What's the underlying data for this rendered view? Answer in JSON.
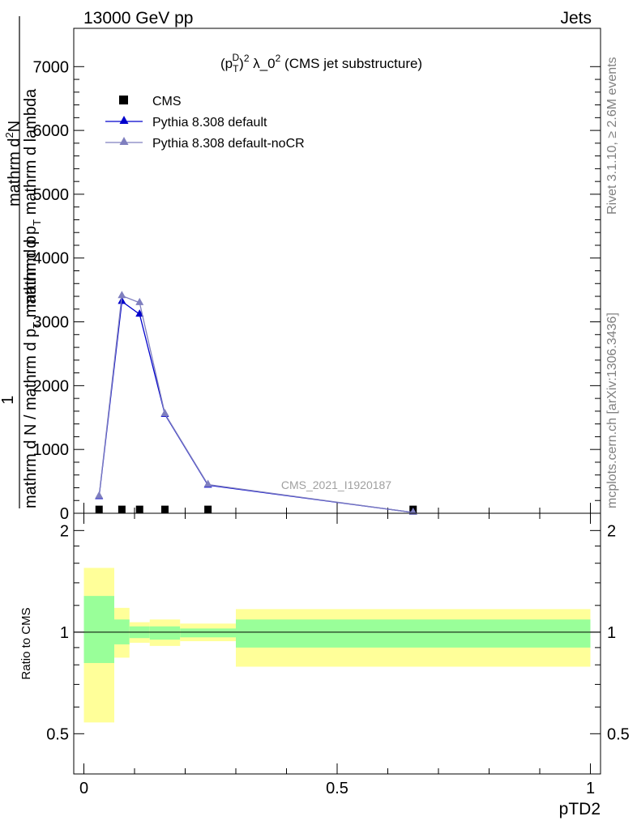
{
  "header": {
    "left": "13000 GeV pp",
    "right": "Jets"
  },
  "side_labels": {
    "rivet": "Rivet 3.1.10, ≥ 2.6M events",
    "mcplots": "mcplots.cern.ch [arXiv:1306.3436]"
  },
  "colors": {
    "cms": "#000000",
    "pythia_default": "#0000cc",
    "pythia_nocr": "#7f7fbf",
    "band_inner": "#99ff99",
    "band_outer": "#ffff99",
    "analysis_tag": "#a0a0a0"
  },
  "chart_data": [
    {
      "type": "line",
      "title_parts": {
        "open": "(p",
        "sub": "T",
        "sup_d": "D",
        "close": ")",
        "sup": "2",
        "mid": " λ_0",
        "sup2": "2",
        "rest": " (CMS jet substructure)"
      },
      "analysis_tag": "CMS_2021_I1920187",
      "xlabel": "pTD2",
      "ylabel_parts": {
        "one": "1",
        "den_a": "mathrm d N / mathrm d p",
        "den_sub": "T",
        "den_b": " mathrm d p",
        "num_a": "mathrm d",
        "num_sup": "2",
        "num_b": "N",
        "num_c": "mathrm d p",
        "num_sub": "T",
        "num_d": " mathrm d lambda"
      },
      "xlim": [
        -0.02,
        1.02
      ],
      "ylim": [
        0,
        7600
      ],
      "y_ticks": [
        "0",
        "1000",
        "2000",
        "3000",
        "4000",
        "5000",
        "6000",
        "7000"
      ],
      "y_tick_values": [
        0,
        1000,
        2000,
        3000,
        4000,
        5000,
        6000,
        7000
      ],
      "legend_position": "top-left",
      "series": [
        {
          "name": "CMS",
          "marker": "square",
          "x": [
            0.03,
            0.075,
            0.11,
            0.16,
            0.245,
            0.65
          ],
          "y": [
            5,
            5,
            5,
            5,
            5,
            5
          ]
        },
        {
          "name": "Pythia 8.308 default",
          "marker": "triangle",
          "x": [
            0.03,
            0.075,
            0.11,
            0.16,
            0.245,
            0.65
          ],
          "y": [
            260,
            3320,
            3120,
            1550,
            440,
            12
          ]
        },
        {
          "name": "Pythia 8.308 default-noCR",
          "marker": "triangle",
          "x": [
            0.03,
            0.075,
            0.11,
            0.16,
            0.245,
            0.65
          ],
          "y": [
            270,
            3410,
            3300,
            1560,
            450,
            12
          ]
        }
      ]
    },
    {
      "type": "area",
      "ylabel": "Ratio to CMS",
      "xlabel": "pTD2",
      "xlim": [
        -0.02,
        1.02
      ],
      "ylim": [
        0.38,
        2.25
      ],
      "y_ticks": [
        "0.5",
        "1",
        "2"
      ],
      "y_tick_values": [
        0.5,
        1,
        2
      ],
      "x_ticks": [
        "0",
        "0.5",
        "1"
      ],
      "x_tick_values": [
        0,
        0.5,
        1
      ],
      "bins": [
        {
          "lo": 0.0,
          "hi": 0.06,
          "inner": [
            0.81,
            1.28
          ],
          "outer": [
            0.54,
            1.55
          ]
        },
        {
          "lo": 0.06,
          "hi": 0.09,
          "inner": [
            0.92,
            1.09
          ],
          "outer": [
            0.84,
            1.18
          ]
        },
        {
          "lo": 0.09,
          "hi": 0.13,
          "inner": [
            0.96,
            1.04
          ],
          "outer": [
            0.93,
            1.07
          ]
        },
        {
          "lo": 0.13,
          "hi": 0.19,
          "inner": [
            0.95,
            1.04
          ],
          "outer": [
            0.91,
            1.09
          ]
        },
        {
          "lo": 0.19,
          "hi": 0.3,
          "inner": [
            0.965,
            1.025
          ],
          "outer": [
            0.94,
            1.06
          ]
        },
        {
          "lo": 0.3,
          "hi": 1.0,
          "inner": [
            0.9,
            1.09
          ],
          "outer": [
            0.79,
            1.17
          ]
        }
      ]
    }
  ]
}
